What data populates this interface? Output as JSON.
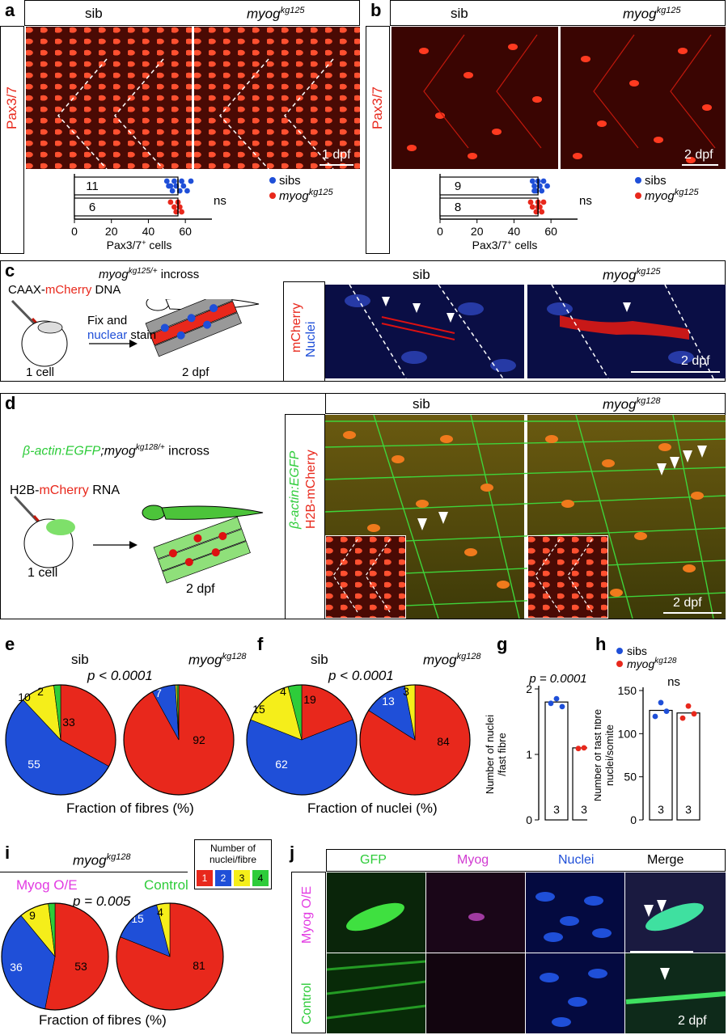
{
  "panels": {
    "a": {
      "label": "a",
      "col_sib": "sib",
      "col_mut": "myog",
      "col_mut_sup": "kg125",
      "stain": "Pax3/7",
      "time": "1 dpf",
      "axis_label": "Pax3/7",
      "axis_label_sup": "+",
      "axis_label_tail": " cells",
      "ticks": [
        "0",
        "20",
        "40",
        "60"
      ],
      "stat": "ns",
      "legend": [
        {
          "name": "sibs",
          "color": "#1f4fd8"
        },
        {
          "name": "myog",
          "sup": "kg125",
          "color": "#e8281c"
        }
      ]
    },
    "b": {
      "label": "b",
      "col_sib": "sib",
      "col_mut": "myog",
      "col_mut_sup": "kg125",
      "stain": "Pax3/7",
      "time": "2 dpf",
      "axis_label": "Pax3/7",
      "axis_label_sup": "+",
      "axis_label_tail": " cells",
      "ticks": [
        "0",
        "20",
        "40",
        "60"
      ],
      "stat": "ns",
      "legend": [
        {
          "name": "sibs",
          "color": "#1f4fd8"
        },
        {
          "name": "myog",
          "sup": "kg125",
          "color": "#e8281c"
        }
      ]
    },
    "c": {
      "label": "c",
      "cross": "myog",
      "cross_sup": "kg125/+",
      "cross_tail": " incross",
      "dna_a": "CAAX-",
      "dna_b": "mCherry",
      "dna_c": " DNA",
      "fix_a": "Fix and",
      "fix_b": "nuclear",
      "fix_c": " stain",
      "cell": "1 cell",
      "time": "2 dpf",
      "stain_a": "mCherry",
      "stain_b": "Nuclei",
      "col_sib": "sib",
      "col_mut": "myog",
      "col_mut_sup": "kg125",
      "scale_time": "2 dpf"
    },
    "d": {
      "label": "d",
      "cross_a": "β-actin:EGFP",
      "cross_b": ";myog",
      "cross_sup": "kg128/+",
      "cross_tail": " incross",
      "rna_a": "H2B-",
      "rna_b": "mCherry",
      "rna_c": " RNA",
      "cell": "1 cell",
      "time": "2 dpf",
      "stain_a": "β-actin:EGFP",
      "stain_b": "H2B-mCherry",
      "col_sib": "sib",
      "col_mut": "myog",
      "col_mut_sup": "kg128",
      "scale_time": "2 dpf"
    },
    "e": {
      "label": "e",
      "sib": "sib",
      "mut": "myog",
      "mut_sup": "kg128",
      "p": "p < 0.0001",
      "caption": "Fraction of fibres (%)"
    },
    "f": {
      "label": "f",
      "sib": "sib",
      "mut": "myog",
      "mut_sup": "kg128",
      "p": "p < 0.0001",
      "caption": "Fraction of nuclei (%)"
    },
    "g": {
      "label": "g",
      "p": "p = 0.0001",
      "ylabel_1": "Number of nuclei",
      "ylabel_2": "/fast fibre",
      "ticks": [
        "0",
        "1",
        "2"
      ],
      "n": [
        "3",
        "3"
      ]
    },
    "h": {
      "label": "h",
      "legend_sibs": "sibs",
      "legend_mut": "myog",
      "legend_mut_sup": "kg128",
      "stat": "ns",
      "ylabel_1": "Number of fast fibre",
      "ylabel_2": "nuclei/somite",
      "ticks": [
        "0",
        "50",
        "100",
        "150"
      ],
      "n": [
        "3",
        "3"
      ]
    },
    "i": {
      "label": "i",
      "title": "myog",
      "title_sup": "kg128",
      "grp_a": "Myog O/E",
      "grp_b": "Control",
      "p": "p = 0.005",
      "caption": "Fraction of fibres (%)",
      "key_title_1": "Number of",
      "key_title_2": "nuclei/fibre",
      "key": [
        "1",
        "2",
        "3",
        "4"
      ]
    },
    "j": {
      "label": "j",
      "cols": [
        "GFP",
        "Myog",
        "Nuclei",
        "Merge"
      ],
      "rows": [
        "Myog O/E",
        "Control"
      ],
      "time": "2 dpf"
    }
  },
  "chart_data": [
    {
      "panel": "a",
      "type": "bar",
      "orientation": "horizontal",
      "categories": [
        "sibs",
        "myog kg125"
      ],
      "values": [
        56,
        56
      ],
      "n": [
        11,
        6
      ],
      "xlabel": "Pax3/7+ cells",
      "xlim": [
        0,
        70
      ],
      "points": [
        [
          50,
          51,
          53,
          54,
          55,
          57,
          58,
          59,
          61,
          63,
          52
        ],
        [
          52,
          54,
          55,
          56,
          57,
          58
        ]
      ]
    },
    {
      "panel": "b",
      "type": "bar",
      "orientation": "horizontal",
      "categories": [
        "sibs",
        "myog kg125"
      ],
      "values": [
        53,
        53
      ],
      "n": [
        9,
        8
      ],
      "xlabel": "Pax3/7+ cells",
      "xlim": [
        0,
        70
      ],
      "points": [
        [
          50,
          51,
          52,
          53,
          54,
          55,
          56,
          58,
          51
        ],
        [
          49,
          50,
          52,
          53,
          54,
          55,
          56,
          53
        ]
      ]
    },
    {
      "panel": "e-sib",
      "type": "pie",
      "labels": [
        "1",
        "2",
        "3",
        "4"
      ],
      "values": [
        33,
        55,
        10,
        2
      ]
    },
    {
      "panel": "e-myog",
      "type": "pie",
      "labels": [
        "1",
        "2",
        "3",
        "4"
      ],
      "values": [
        92,
        7,
        0.5,
        0.5
      ]
    },
    {
      "panel": "f-sib",
      "type": "pie",
      "labels": [
        "1",
        "2",
        "3",
        "4"
      ],
      "values": [
        19,
        62,
        15,
        4
      ]
    },
    {
      "panel": "f-myog",
      "type": "pie",
      "labels": [
        "1",
        "2",
        "3",
        "4"
      ],
      "values": [
        84,
        13,
        3,
        0
      ]
    },
    {
      "panel": "g",
      "type": "bar",
      "categories": [
        "sibs",
        "myog kg128"
      ],
      "values": [
        1.8,
        1.1
      ],
      "ylabel": "Number of nuclei /fast fibre",
      "ylim": [
        0,
        2
      ],
      "points": [
        [
          1.78,
          1.85,
          1.73
        ],
        [
          1.09,
          1.1,
          1.1
        ]
      ]
    },
    {
      "panel": "h",
      "type": "bar",
      "categories": [
        "sibs",
        "myog kg128"
      ],
      "values": [
        127,
        124
      ],
      "ylabel": "Number of fast fibre nuclei/somite",
      "ylim": [
        0,
        150
      ],
      "points": [
        [
          120,
          136,
          126
        ],
        [
          118,
          132,
          123
        ]
      ]
    },
    {
      "panel": "i-myogOE",
      "type": "pie",
      "labels": [
        "1",
        "2",
        "3",
        "4"
      ],
      "values": [
        53,
        36,
        9,
        2
      ]
    },
    {
      "panel": "i-control",
      "type": "pie",
      "labels": [
        "1",
        "2",
        "3",
        "4"
      ],
      "values": [
        81,
        15,
        4,
        0
      ]
    }
  ],
  "colors": {
    "c1": "#e8281c",
    "c2": "#1f4fd8",
    "c3": "#f5ee1a",
    "c4": "#2ecc3a",
    "sib": "#1f4fd8",
    "mut": "#e8281c"
  }
}
